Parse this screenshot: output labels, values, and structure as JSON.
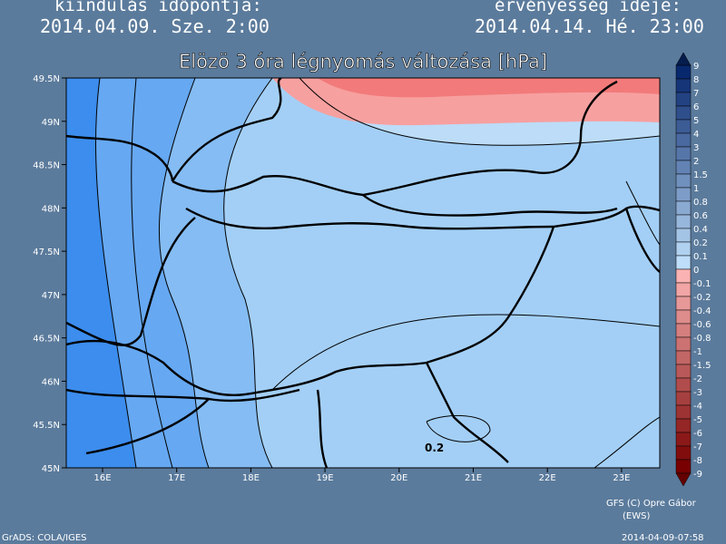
{
  "header": {
    "left_label": "kiindulás időpontja:",
    "left_time": "2014.04.09. Sze. 2:00",
    "right_label": "érvényesség ideje:",
    "right_time": "2014.04.14. Hé. 23:00",
    "title": "Elözö 3 óra légnyomás változása [hPa]"
  },
  "map": {
    "lat_labels": [
      "49.5N",
      "49N",
      "48.5N",
      "48N",
      "47.5N",
      "47N",
      "46.5N",
      "46N",
      "45.5N",
      "45N"
    ],
    "lon_labels": [
      "16E",
      "17E",
      "18E",
      "19E",
      "20E",
      "21E",
      "22E",
      "23E"
    ],
    "contour_label": "0.2"
  },
  "colorbar": {
    "labels": [
      "9",
      "8",
      "7",
      "6",
      "5",
      "4",
      "3",
      "2",
      "1.5",
      "1",
      "0.8",
      "0.6",
      "0.4",
      "0.2",
      "0.1",
      "0",
      "-0.1",
      "-0.2",
      "-0.4",
      "-0.6",
      "-0.8",
      "-1",
      "-1.5",
      "-2",
      "-3",
      "-4",
      "-5",
      "-6",
      "-7",
      "-8",
      "-9"
    ]
  },
  "footer": {
    "credit": "GFS (C) Opre Gábor",
    "credit_sub": "(EWS)",
    "software": "GrADS: COLA/IGES",
    "timestamp": "2014-04-09-07:58"
  }
}
